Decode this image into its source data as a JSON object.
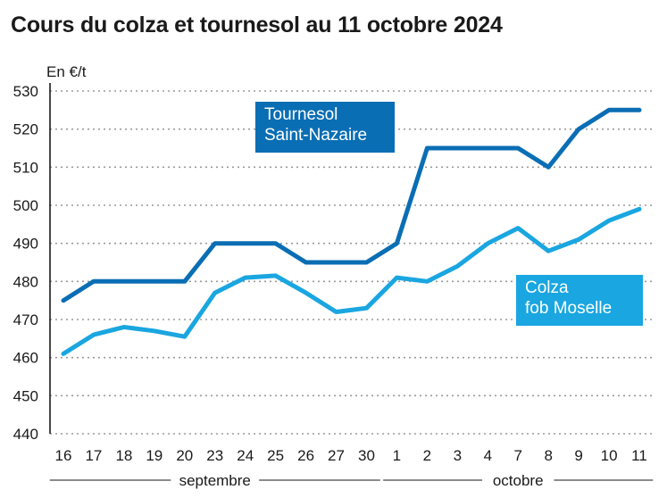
{
  "chart_data": {
    "type": "line",
    "title": "Cours du colza et tournesol au 11 octobre 2024",
    "ylabel": "En €/t",
    "ylim": [
      440,
      530
    ],
    "yticks": [
      440,
      450,
      460,
      470,
      480,
      490,
      500,
      510,
      520,
      530
    ],
    "categories": [
      "16",
      "17",
      "18",
      "19",
      "20",
      "23",
      "24",
      "25",
      "26",
      "27",
      "30",
      "1",
      "2",
      "3",
      "4",
      "7",
      "8",
      "9",
      "10",
      "11"
    ],
    "months": [
      {
        "label": "septembre",
        "from": 0,
        "to": 10
      },
      {
        "label": "octobre",
        "from": 11,
        "to": 19
      }
    ],
    "grid": true,
    "series": [
      {
        "name_lines": [
          "Tournesol",
          "Saint-Nazaire"
        ],
        "color": "#0a6eb4",
        "values": [
          475,
          480,
          480,
          480,
          480,
          490,
          490,
          490,
          485,
          485,
          485,
          490,
          515,
          515,
          515,
          515,
          510,
          520,
          525,
          525
        ]
      },
      {
        "name_lines": [
          "Colza",
          "fob Moselle"
        ],
        "color": "#1aa6e0",
        "values": [
          461,
          466,
          468,
          467,
          465.5,
          477,
          481,
          481.5,
          477,
          472,
          473,
          481,
          480,
          484,
          490,
          494,
          488,
          491,
          496,
          499
        ]
      }
    ]
  }
}
